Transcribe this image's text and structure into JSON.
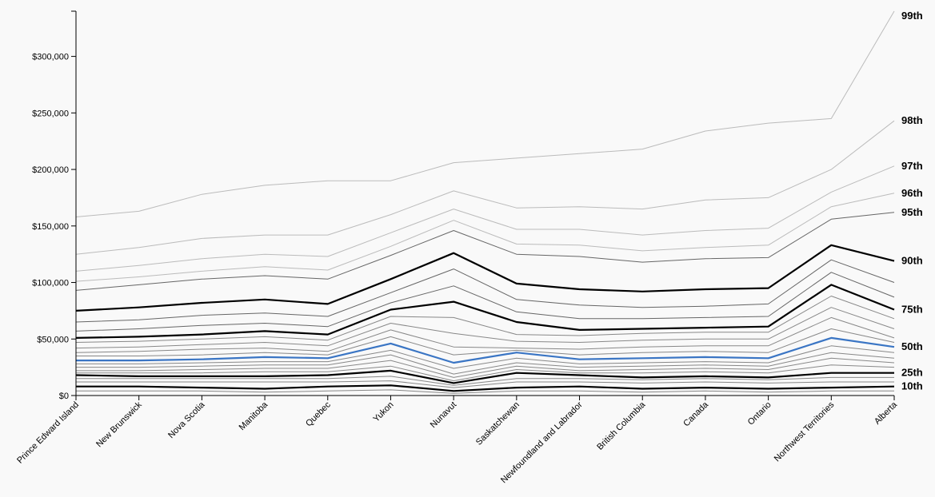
{
  "chart_data": {
    "type": "line",
    "title": "",
    "xlabel": "",
    "ylabel": "",
    "ylim": [
      0,
      340000
    ],
    "grid": false,
    "legend": "none",
    "categories": [
      "Prince Edward Island",
      "New Brunswick",
      "Nova Scotia",
      "Manitoba",
      "Quebec",
      "Yukon",
      "Nunavut",
      "Saskatchewan",
      "Newfoundland and Labrador",
      "British Columbia",
      "Canada",
      "Ontario",
      "Northwest Territories",
      "Alberta"
    ],
    "y_ticks": [
      {
        "value": 0,
        "label": "$0"
      },
      {
        "value": 50000,
        "label": "$50,000"
      },
      {
        "value": 100000,
        "label": "$100,000"
      },
      {
        "value": 150000,
        "label": "$150,000"
      },
      {
        "value": 200000,
        "label": "$200,000"
      },
      {
        "value": 250000,
        "label": "$250,000"
      },
      {
        "value": 300000,
        "label": "$300,000"
      }
    ],
    "colors": {
      "light": "#bbbbbb",
      "medium": "#666666",
      "dark": "#888888",
      "bold": "#000000",
      "median": "#3a75c4"
    },
    "series": [
      {
        "name": "99th",
        "style": "light",
        "values": [
          158000,
          163000,
          178000,
          186000,
          190000,
          190000,
          206000,
          210000,
          214000,
          218000,
          234000,
          241000,
          245000,
          340000
        ]
      },
      {
        "name": "98th",
        "style": "light",
        "values": [
          125000,
          131000,
          139000,
          142000,
          142000,
          160000,
          181000,
          166000,
          167000,
          165000,
          173000,
          175000,
          200000,
          243000
        ]
      },
      {
        "name": "97th",
        "style": "light",
        "values": [
          110000,
          115000,
          121000,
          125000,
          123000,
          144000,
          165000,
          147000,
          147000,
          142000,
          146000,
          148000,
          180000,
          203000
        ]
      },
      {
        "name": "96th",
        "style": "light",
        "values": [
          101000,
          105000,
          110000,
          114000,
          111000,
          132000,
          155000,
          134000,
          133000,
          128000,
          131000,
          133000,
          167000,
          179000
        ]
      },
      {
        "name": "95th",
        "style": "medium",
        "values": [
          93000,
          98000,
          103000,
          106000,
          103000,
          124000,
          146000,
          125000,
          123000,
          118000,
          121000,
          122000,
          156000,
          162000
        ]
      },
      {
        "name": "90th",
        "style": "bold",
        "values": [
          75000,
          78000,
          82000,
          85000,
          81000,
          103000,
          126000,
          99000,
          94000,
          92000,
          94000,
          95000,
          133000,
          119000
        ]
      },
      {
        "name": "",
        "style": "medium",
        "values": [
          65000,
          67000,
          71000,
          73000,
          70000,
          91000,
          112000,
          85000,
          80000,
          78000,
          79000,
          81000,
          120000,
          100000
        ]
      },
      {
        "name": "75th",
        "style": "bold",
        "values": [
          51000,
          52000,
          54000,
          57000,
          54000,
          76000,
          83000,
          65000,
          58000,
          59000,
          60000,
          61000,
          98000,
          76000
        ]
      },
      {
        "name": "",
        "style": "medium",
        "values": [
          57000,
          59000,
          62000,
          64000,
          61000,
          82000,
          97000,
          74000,
          68000,
          68000,
          69000,
          70000,
          109000,
          87000
        ]
      },
      {
        "name": "",
        "style": "dark",
        "values": [
          47000,
          48000,
          50000,
          52000,
          49000,
          70000,
          69000,
          54000,
          53000,
          55000,
          56000,
          56000,
          88000,
          68000
        ]
      },
      {
        "name": "",
        "style": "dark",
        "values": [
          42000,
          43000,
          45000,
          47000,
          44000,
          64000,
          55000,
          48000,
          47000,
          49000,
          50000,
          50000,
          78000,
          59000
        ]
      },
      {
        "name": "",
        "style": "dark",
        "values": [
          38000,
          39000,
          41000,
          42000,
          39000,
          58000,
          43000,
          42000,
          41000,
          43000,
          44000,
          44000,
          69000,
          51000
        ]
      },
      {
        "name": "",
        "style": "dark",
        "values": [
          35000,
          35000,
          36000,
          38000,
          36000,
          52000,
          36000,
          40000,
          36000,
          38000,
          39000,
          38000,
          59000,
          47000
        ]
      },
      {
        "name": "50th",
        "style": "median",
        "values": [
          31000,
          31000,
          32000,
          34000,
          33000,
          46000,
          29000,
          38000,
          32000,
          33000,
          34000,
          33000,
          51000,
          43000
        ]
      },
      {
        "name": "",
        "style": "dark",
        "values": [
          28000,
          28000,
          29000,
          30000,
          30000,
          40000,
          24000,
          33000,
          28000,
          29000,
          30000,
          29000,
          44000,
          38000
        ]
      },
      {
        "name": "",
        "style": "dark",
        "values": [
          25000,
          25000,
          26000,
          27000,
          27000,
          36000,
          19000,
          29000,
          25000,
          26000,
          27000,
          26000,
          38000,
          33000
        ]
      },
      {
        "name": "",
        "style": "dark",
        "values": [
          22000,
          22000,
          23000,
          24000,
          24000,
          31000,
          16000,
          26000,
          22000,
          23000,
          24000,
          23000,
          33000,
          29000
        ]
      },
      {
        "name": "",
        "style": "dark",
        "values": [
          20000,
          20000,
          20000,
          21000,
          21000,
          26000,
          13000,
          23000,
          20000,
          20000,
          21000,
          20000,
          27000,
          25000
        ]
      },
      {
        "name": "25th",
        "style": "bold",
        "values": [
          18000,
          17000,
          17000,
          17000,
          18000,
          22000,
          11000,
          20000,
          18000,
          16000,
          17000,
          16000,
          20000,
          20000
        ]
      },
      {
        "name": "",
        "style": "dark",
        "values": [
          15000,
          15000,
          15000,
          15000,
          15000,
          17000,
          9000,
          15000,
          15000,
          14000,
          15000,
          14000,
          16000,
          16000
        ]
      },
      {
        "name": "",
        "style": "dark",
        "values": [
          12000,
          12000,
          12000,
          12000,
          12000,
          13000,
          7000,
          12000,
          12000,
          11000,
          12000,
          11000,
          12000,
          12000
        ]
      },
      {
        "name": "10th",
        "style": "bold",
        "values": [
          8000,
          8000,
          7000,
          6000,
          8000,
          9000,
          4000,
          7000,
          8000,
          6000,
          7000,
          6000,
          7000,
          8000
        ]
      },
      {
        "name": "",
        "style": "dark",
        "values": [
          4000,
          4000,
          4000,
          3000,
          4000,
          5000,
          2000,
          4000,
          4000,
          3000,
          4000,
          3000,
          4000,
          4000
        ]
      }
    ]
  }
}
